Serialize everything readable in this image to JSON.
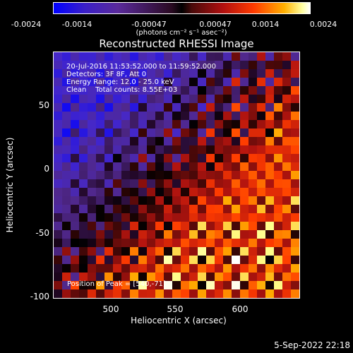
{
  "colorbar": {
    "ticks": [
      "-0.0024",
      "-0.0014",
      "-0.00047",
      "0.00047",
      "0.0014",
      "0.0024"
    ],
    "units": "(photons cm⁻² s⁻¹ asec⁻²)"
  },
  "title": "Reconstructed RHESSI Image",
  "info": {
    "time_range": "20-Jul-2016 11:53:52.000 to 11:59:52.000",
    "detectors": "Detectors: 3F 8F, Att 0",
    "energy": "Energy Range: 12.0 - 25.0 keV",
    "algorithm": "Clean    Total counts: 8.55E+03"
  },
  "peak_label": "Position of Peak = [540,-71]",
  "axes": {
    "xlabel": "Heliocentric X (arcsec)",
    "ylabel": "Heliocentric Y (arcsec)",
    "xticks": [
      "500",
      "550",
      "600"
    ],
    "yticks": [
      "50",
      "0",
      "-50",
      "-100"
    ]
  },
  "timestamp": "5-Sep-2022 22:18"
}
